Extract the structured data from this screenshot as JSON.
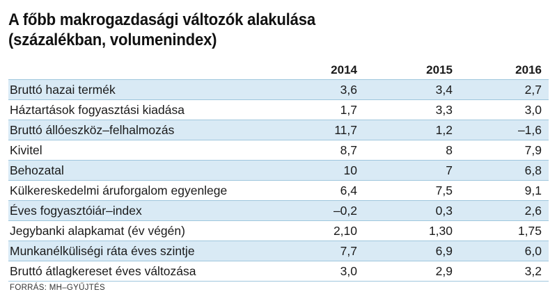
{
  "title": {
    "line1": "A főbb makrogazdasági változók alakulása",
    "line2": "(százalékban, volumenindex)"
  },
  "table": {
    "columns": [
      "2014",
      "2015",
      "2016"
    ],
    "rows": [
      {
        "label": "Bruttó hazai termék",
        "values": [
          "3,6",
          "3,4",
          "2,7"
        ]
      },
      {
        "label": "Háztartások fogyasztási kiadása",
        "values": [
          "1,7",
          "3,3",
          "3,0"
        ]
      },
      {
        "label": "Bruttó állóeszköz–felhalmozás",
        "values": [
          "11,7",
          "1,2",
          "–1,6"
        ]
      },
      {
        "label": "Kivitel",
        "values": [
          "8,7",
          "8",
          "7,9"
        ]
      },
      {
        "label": "Behozatal",
        "values": [
          "10",
          "7",
          "6,8"
        ]
      },
      {
        "label": "Külkereskedelmi áruforgalom egyenlege",
        "values": [
          "6,4",
          "7,5",
          "9,1"
        ]
      },
      {
        "label": "Éves fogyasztóiár–index",
        "values": [
          "–0,2",
          "0,3",
          "2,6"
        ]
      },
      {
        "label": "Jegybanki alapkamat (év végén)",
        "values": [
          "2,10",
          "1,30",
          "1,75"
        ]
      },
      {
        "label": "Munkanélküliségi ráta éves szintje",
        "values": [
          "7,7",
          "6,9",
          "6,0"
        ]
      },
      {
        "label": "Bruttó átlagkereset éves változása",
        "values": [
          "3,0",
          "2,9",
          "3,2"
        ]
      }
    ]
  },
  "source": "FORRÁS: MH–GYŰJTÉS",
  "colors": {
    "row_shade": "#d9eaf5",
    "row_rule": "#9ec6dd"
  }
}
